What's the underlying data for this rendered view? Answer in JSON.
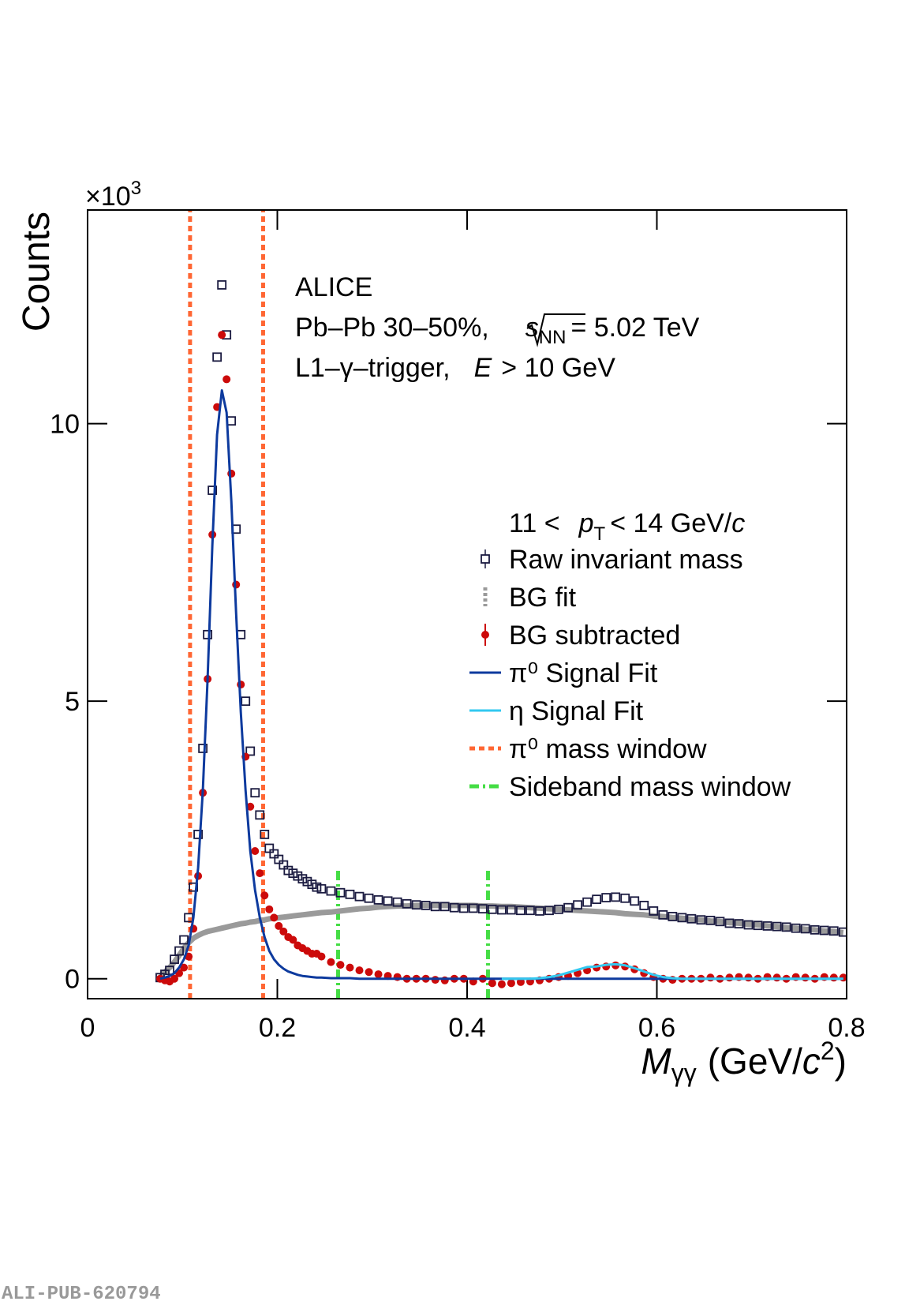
{
  "chart_data": {
    "type": "line",
    "ylabel": "Counts",
    "y_multiplier": {
      "base": "×10",
      "exp": "3"
    },
    "xlabel": {
      "var": "M",
      "sub": "γγ",
      "unit_open": "(GeV/",
      "unit_c": "c",
      "unit_exp": "2",
      "unit_close": ")"
    },
    "annotations": {
      "experiment": "ALICE",
      "system": "Pb–Pb 30–50%,",
      "energy_var": "s",
      "energy_sub": "NN",
      "energy_val": "= 5.02 TeV",
      "trigger": "L1–γ–trigger,",
      "cut_var": "E",
      "cut_val": "> 10 GeV"
    },
    "legend_header": {
      "low": "11 <",
      "var": "p",
      "sub": "T",
      "high": "< 14 GeV/",
      "unit": "c"
    },
    "xlim": [
      0,
      0.8
    ],
    "ylim": [
      -0.36,
      13.85
    ],
    "xticks": [
      0,
      0.2,
      0.4,
      0.6,
      0.8
    ],
    "yticks": [
      0,
      5,
      10
    ],
    "x": [
      0.0765,
      0.0815,
      0.0865,
      0.0915,
      0.0965,
      0.1015,
      0.1065,
      0.1115,
      0.1165,
      0.1215,
      0.1265,
      0.1315,
      0.1365,
      0.1415,
      0.1465,
      0.1515,
      0.1565,
      0.1615,
      0.1665,
      0.1715,
      0.1765,
      0.1815,
      0.1865,
      0.1915,
      0.1965,
      0.2015,
      0.2065,
      0.2115,
      0.2165,
      0.2215,
      0.2265,
      0.2315,
      0.2365,
      0.2415,
      0.2465,
      0.2565,
      0.2665,
      0.2765,
      0.2865,
      0.2965,
      0.3065,
      0.3165,
      0.3265,
      0.3365,
      0.3465,
      0.3565,
      0.3665,
      0.3765,
      0.3865,
      0.3965,
      0.4065,
      0.4165,
      0.4265,
      0.4365,
      0.4465,
      0.4565,
      0.4665,
      0.4765,
      0.4865,
      0.4965,
      0.5065,
      0.5165,
      0.5265,
      0.5365,
      0.5465,
      0.5565,
      0.5665,
      0.5765,
      0.5865,
      0.5965,
      0.6065,
      0.6165,
      0.6265,
      0.6365,
      0.6465,
      0.6565,
      0.6665,
      0.6765,
      0.6865,
      0.6965,
      0.7065,
      0.7165,
      0.7265,
      0.7365,
      0.7465,
      0.7565,
      0.7665,
      0.7765,
      0.7865,
      0.7965
    ],
    "series": [
      {
        "name": "Raw invariant mass",
        "style": "open-square",
        "color": "#1a1a40",
        "values": [
          0.02,
          0.08,
          0.15,
          0.35,
          0.5,
          0.7,
          1.1,
          1.65,
          2.6,
          4.15,
          6.2,
          8.8,
          11.2,
          12.5,
          11.6,
          10.05,
          8.1,
          6.2,
          5.0,
          4.1,
          3.35,
          2.95,
          2.6,
          2.35,
          2.25,
          2.15,
          2.05,
          1.95,
          1.9,
          1.85,
          1.8,
          1.75,
          1.7,
          1.65,
          1.62,
          1.58,
          1.55,
          1.52,
          1.48,
          1.45,
          1.42,
          1.4,
          1.38,
          1.35,
          1.33,
          1.32,
          1.3,
          1.3,
          1.28,
          1.27,
          1.27,
          1.26,
          1.25,
          1.24,
          1.24,
          1.23,
          1.23,
          1.22,
          1.23,
          1.25,
          1.28,
          1.33,
          1.38,
          1.43,
          1.46,
          1.47,
          1.45,
          1.4,
          1.32,
          1.22,
          1.15,
          1.12,
          1.1,
          1.08,
          1.06,
          1.05,
          1.03,
          1.0,
          0.99,
          0.97,
          0.96,
          0.95,
          0.94,
          0.93,
          0.91,
          0.9,
          0.88,
          0.87,
          0.86,
          0.84
        ]
      },
      {
        "name": "BG fit",
        "style": "thick-line",
        "color": "#9a9a9a",
        "values": [
          0.05,
          0.12,
          0.2,
          0.3,
          0.42,
          0.55,
          0.65,
          0.73,
          0.78,
          0.82,
          0.85,
          0.87,
          0.89,
          0.91,
          0.93,
          0.95,
          0.97,
          0.99,
          1.0,
          1.02,
          1.03,
          1.05,
          1.06,
          1.08,
          1.09,
          1.1,
          1.11,
          1.12,
          1.13,
          1.14,
          1.15,
          1.16,
          1.17,
          1.18,
          1.19,
          1.2,
          1.22,
          1.24,
          1.26,
          1.27,
          1.29,
          1.3,
          1.31,
          1.31,
          1.32,
          1.32,
          1.32,
          1.32,
          1.32,
          1.32,
          1.32,
          1.31,
          1.31,
          1.3,
          1.3,
          1.29,
          1.28,
          1.27,
          1.26,
          1.25,
          1.24,
          1.23,
          1.22,
          1.21,
          1.2,
          1.19,
          1.17,
          1.16,
          1.15,
          1.13,
          1.12,
          1.1,
          1.09,
          1.07,
          1.06,
          1.04,
          1.03,
          1.01,
          1.0,
          0.98,
          0.97,
          0.95,
          0.94,
          0.92,
          0.91,
          0.89,
          0.88,
          0.86,
          0.85,
          0.83
        ]
      },
      {
        "name": "BG subtracted",
        "style": "circle",
        "color": "#cc0a0a",
        "values": [
          0.0,
          -0.03,
          -0.05,
          0.0,
          0.1,
          0.2,
          0.4,
          0.9,
          1.85,
          3.35,
          5.4,
          8.0,
          10.3,
          11.6,
          10.8,
          9.1,
          7.1,
          5.3,
          4.0,
          3.1,
          2.3,
          1.9,
          1.5,
          1.25,
          1.1,
          0.95,
          0.85,
          0.75,
          0.7,
          0.6,
          0.55,
          0.5,
          0.45,
          0.45,
          0.4,
          0.3,
          0.25,
          0.2,
          0.15,
          0.12,
          0.08,
          0.05,
          0.03,
          0.0,
          0.0,
          0.0,
          -0.02,
          -0.03,
          0.0,
          0.0,
          -0.05,
          0.0,
          -0.08,
          -0.1,
          -0.08,
          -0.06,
          -0.05,
          -0.03,
          0.0,
          0.03,
          0.05,
          0.1,
          0.15,
          0.2,
          0.22,
          0.24,
          0.22,
          0.17,
          0.1,
          0.03,
          0.0,
          -0.02,
          0.0,
          0.0,
          0.0,
          0.02,
          0.0,
          0.02,
          0.03,
          0.02,
          0.0,
          0.03,
          0.02,
          0.0,
          0.03,
          0.02,
          0.0,
          0.03,
          0.02,
          0.02
        ]
      },
      {
        "name": "π⁰ Signal Fit",
        "style": "line",
        "color": "#0d3a9e",
        "values": [
          0.0,
          0.02,
          0.05,
          0.1,
          0.2,
          0.35,
          0.6,
          1.1,
          2.0,
          3.4,
          5.4,
          7.8,
          9.8,
          10.6,
          10.2,
          8.6,
          6.6,
          4.8,
          3.4,
          2.3,
          1.6,
          1.1,
          0.75,
          0.5,
          0.35,
          0.25,
          0.18,
          0.13,
          0.1,
          0.07,
          0.05,
          0.04,
          0.03,
          0.02,
          0.02,
          0.01,
          0.01,
          0.01,
          0,
          0,
          0,
          0,
          0,
          0,
          0,
          0,
          0,
          0,
          0,
          0,
          0,
          0,
          0,
          0,
          0,
          0,
          0,
          0,
          0,
          0,
          0,
          0,
          0,
          0,
          0,
          0,
          0,
          0,
          0,
          0,
          0,
          0,
          0,
          0,
          0,
          0,
          0,
          0,
          0,
          0,
          0,
          0,
          0,
          0,
          0,
          0,
          0,
          0,
          0,
          0
        ]
      },
      {
        "name": "η Signal Fit",
        "style": "line",
        "color": "#33c8f0",
        "x": [
          0.4365,
          0.4465,
          0.4565,
          0.4665,
          0.4765,
          0.4865,
          0.4965,
          0.5065,
          0.5165,
          0.5265,
          0.5365,
          0.5465,
          0.5565,
          0.5665,
          0.5765,
          0.5865,
          0.5965,
          0.6065,
          0.6165,
          0.6265,
          0.6365,
          0.6465,
          0.6565,
          0.6665,
          0.6765,
          0.6865,
          0.6965,
          0.7065,
          0.7165,
          0.7265,
          0.7365,
          0.7465,
          0.7565,
          0.7665,
          0.7765,
          0.7865,
          0.7965
        ],
        "values": [
          0,
          0,
          0,
          0,
          0.01,
          0.03,
          0.06,
          0.11,
          0.16,
          0.21,
          0.22,
          0.25,
          0.26,
          0.24,
          0.19,
          0.13,
          0.07,
          0.03,
          0.01,
          0,
          0,
          0,
          0,
          0,
          0,
          0,
          0,
          0,
          0,
          0,
          0,
          0,
          0,
          0,
          0,
          0,
          0
        ]
      }
    ],
    "reference_lines": [
      {
        "name": "π⁰ mass window",
        "style": "dashed",
        "color": "#ff6633",
        "x": [
          0.108,
          0.185
        ]
      },
      {
        "name": "Sideband mass window",
        "style": "dash-dot",
        "color": "#44dd44",
        "x": [
          0.264,
          0.422
        ],
        "ymax": 2.0
      }
    ]
  },
  "footer": "ALI-PUB-620794"
}
